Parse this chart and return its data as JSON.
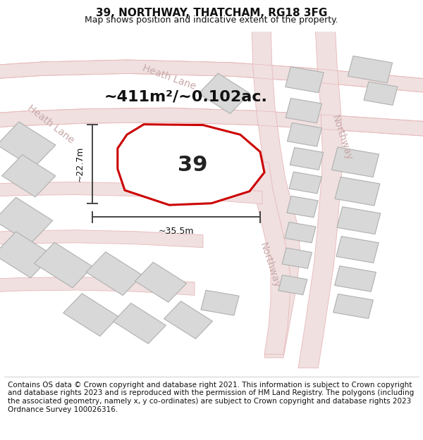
{
  "title": "39, NORTHWAY, THATCHAM, RG18 3FG",
  "subtitle": "Map shows position and indicative extent of the property.",
  "area_label": "~411m²/~0.102ac.",
  "plot_number": "39",
  "dim_width": "~35.5m",
  "dim_height": "~22.7m",
  "footer": "Contains OS data © Crown copyright and database right 2021. This information is subject to Crown copyright and database rights 2023 and is reproduced with the permission of HM Land Registry. The polygons (including the associated geometry, namely x, y co-ordinates) are subject to Crown copyright and database rights 2023 Ordnance Survey 100026316.",
  "bg_color": "#ffffff",
  "map_bg": "#f7f4f4",
  "road_line_color": "#e8b8b8",
  "road_fill_color": "#f0e0e0",
  "building_fill": "#d8d8d8",
  "building_edge": "#b0b0b0",
  "plot_edge_color": "#cc0000",
  "plot_fill": "#ffffff",
  "street_label_color": "#c8a8a8",
  "dim_color": "#444444",
  "title_fontsize": 11,
  "subtitle_fontsize": 9,
  "area_fontsize": 16,
  "plot_label_fontsize": 22,
  "dim_fontsize": 9,
  "street_fontsize": 10,
  "footer_fontsize": 7.5
}
